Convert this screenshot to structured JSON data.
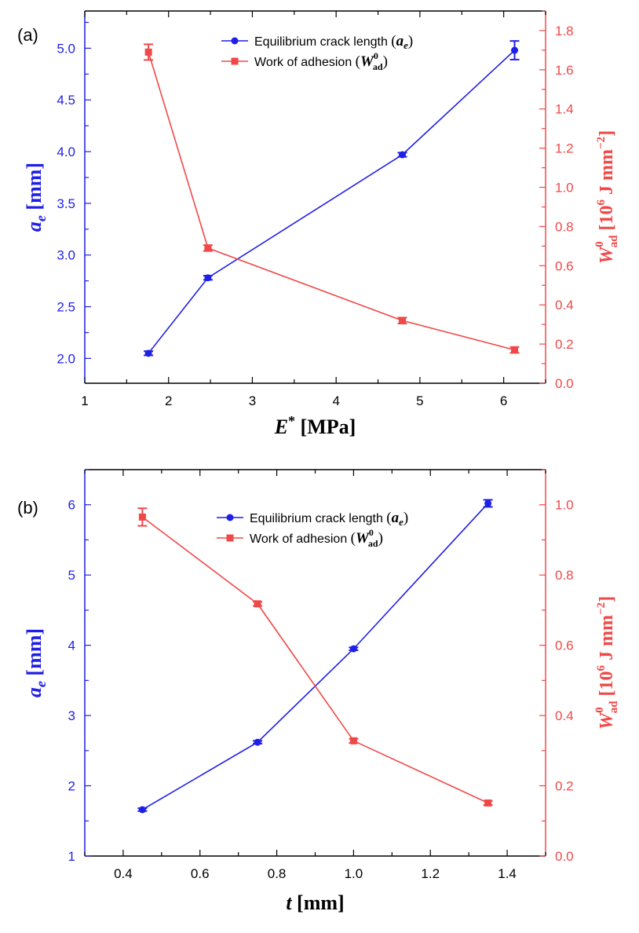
{
  "colors": {
    "blue": "#1f1fe8",
    "red": "#f04848",
    "axis": "#000000"
  },
  "chart_data": [
    {
      "type": "line",
      "panel_label": "(a)",
      "xlabel": "E* [MPa]",
      "ylabel": "a_e [mm]",
      "y2label": "W_ad^0 [10^6 J mm^-2]",
      "xlim": [
        1,
        6.5
      ],
      "ylim": [
        1.76,
        5.36
      ],
      "y2lim": [
        0,
        1.9
      ],
      "xticks": [
        "1",
        "2",
        "3",
        "4",
        "5",
        "6"
      ],
      "yticks": [
        "2.0",
        "2.5",
        "3.0",
        "3.5",
        "4.0",
        "4.5",
        "5.0"
      ],
      "y2ticks": [
        "0.0",
        "0.2",
        "0.4",
        "0.6",
        "0.8",
        "1.0",
        "1.2",
        "1.4",
        "1.6",
        "1.8"
      ],
      "legend_position": "top-center",
      "series": [
        {
          "name": "Equilibrium crack length (a_e)",
          "axis": "left",
          "color": "blue",
          "marker": "circle",
          "x": [
            1.76,
            2.47,
            4.79,
            6.13
          ],
          "y": [
            2.05,
            2.78,
            3.97,
            4.98
          ],
          "err": [
            0.02,
            0.02,
            0.02,
            0.09
          ]
        },
        {
          "name": "Work of adhesion (W_ad^0)",
          "axis": "right",
          "color": "red",
          "marker": "square",
          "x": [
            1.76,
            2.47,
            4.79,
            6.13
          ],
          "y": [
            1.69,
            0.69,
            0.32,
            0.17
          ],
          "err": [
            0.04,
            0.015,
            0.015,
            0.015
          ]
        }
      ]
    },
    {
      "type": "line",
      "panel_label": "(b)",
      "xlabel": "t [mm]",
      "ylabel": "a_e [mm]",
      "y2label": "W_ad^0 [10^6 J mm^-2]",
      "xlim": [
        0.3,
        1.5
      ],
      "ylim": [
        1,
        6.5
      ],
      "y2lim": [
        0,
        1.1
      ],
      "xticks": [
        "0.4",
        "0.6",
        "0.8",
        "1.0",
        "1.2",
        "1.4"
      ],
      "yticks": [
        "1",
        "2",
        "3",
        "4",
        "5",
        "6"
      ],
      "y2ticks": [
        "0.0",
        "0.2",
        "0.4",
        "0.6",
        "0.8",
        "1.0"
      ],
      "legend_position": "top-center",
      "series": [
        {
          "name": "Equilibrium crack length (a_e)",
          "axis": "left",
          "color": "blue",
          "marker": "circle",
          "x": [
            0.45,
            0.75,
            1.0,
            1.35
          ],
          "y": [
            1.66,
            2.62,
            3.95,
            6.02
          ],
          "err": [
            0.02,
            0.02,
            0.02,
            0.05
          ]
        },
        {
          "name": "Work of adhesion (W_ad^0)",
          "axis": "right",
          "color": "red",
          "marker": "square",
          "x": [
            0.45,
            0.75,
            1.0,
            1.35
          ],
          "y": [
            0.965,
            0.718,
            0.328,
            0.151
          ],
          "err": [
            0.025,
            0.006,
            0.006,
            0.006
          ]
        }
      ]
    }
  ]
}
